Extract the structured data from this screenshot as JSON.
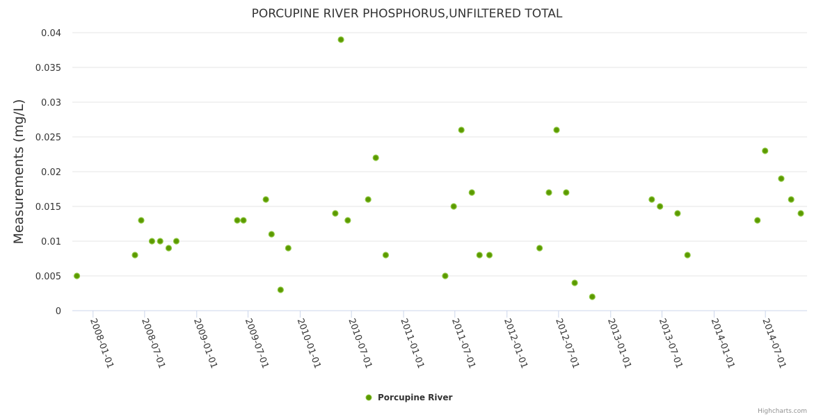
{
  "chart_data": {
    "type": "scatter",
    "title": "PORCUPINE RIVER PHOSPHORUS,UNFILTERED TOTAL",
    "xlabel": "",
    "ylabel": "Measurements (mg/L)",
    "ylim": [
      0,
      0.04
    ],
    "yticks": [
      "0",
      "0.005",
      "0.01",
      "0.015",
      "0.02",
      "0.025",
      "0.03",
      "0.035",
      "0.04"
    ],
    "xlim": [
      "2007-10-20",
      "2014-11-25"
    ],
    "xticks": [
      "2008-01-01",
      "2008-07-01",
      "2009-01-01",
      "2009-07-01",
      "2010-01-01",
      "2010-07-01",
      "2011-01-01",
      "2011-07-01",
      "2012-01-01",
      "2012-07-01",
      "2013-01-01",
      "2013-07-01",
      "2014-01-01",
      "2014-07-01"
    ],
    "grid": true,
    "legend_position": "bottom-center",
    "series": [
      {
        "name": "Porcupine River",
        "color": "#5c9a00",
        "x": [
          "2007-11-05",
          "2008-05-28",
          "2008-06-19",
          "2008-07-27",
          "2008-08-25",
          "2008-09-24",
          "2008-10-21",
          "2009-05-24",
          "2009-06-15",
          "2009-09-02",
          "2009-09-22",
          "2009-10-24",
          "2009-11-20",
          "2010-05-05",
          "2010-05-25",
          "2010-06-18",
          "2010-08-29",
          "2010-09-25",
          "2010-10-30",
          "2011-05-28",
          "2011-06-27",
          "2011-07-24",
          "2011-08-30",
          "2011-09-26",
          "2011-10-31",
          "2012-04-25",
          "2012-05-28",
          "2012-06-24",
          "2012-07-28",
          "2012-08-27",
          "2012-10-28",
          "2013-05-26",
          "2013-06-24",
          "2013-08-25",
          "2013-09-29",
          "2014-06-03",
          "2014-06-30",
          "2014-08-26",
          "2014-09-30",
          "2014-11-03"
        ],
        "y": [
          0.005,
          0.008,
          0.013,
          0.01,
          0.01,
          0.009,
          0.01,
          0.013,
          0.013,
          0.016,
          0.011,
          0.003,
          0.009,
          0.014,
          0.039,
          0.013,
          0.016,
          0.022,
          0.008,
          0.005,
          0.015,
          0.026,
          0.017,
          0.008,
          0.008,
          0.009,
          0.017,
          0.026,
          0.017,
          0.004,
          0.002,
          0.016,
          0.015,
          0.014,
          0.008,
          0.013,
          0.023,
          0.019,
          0.016,
          0.014
        ]
      }
    ]
  },
  "credits": "Highcharts.com"
}
